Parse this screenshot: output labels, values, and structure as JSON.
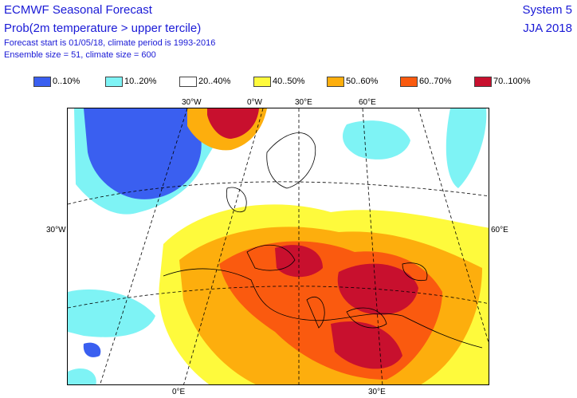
{
  "header": {
    "title": "ECMWF Seasonal Forecast",
    "subtitle": "Prob(2m temperature > upper tercile)",
    "line1": "Forecast start is 01/05/18, climate period is 1993-2016",
    "line2": "Ensemble size = 51, climate size = 600",
    "system": "System 5",
    "season": "JJA 2018"
  },
  "legend": [
    {
      "label": "0..10%",
      "color": "#3a5ff0"
    },
    {
      "label": "10..20%",
      "color": "#7ef3f5"
    },
    {
      "label": "20..40%",
      "color": "#ffffff"
    },
    {
      "label": "40..50%",
      "color": "#fefa3c"
    },
    {
      "label": "50..60%",
      "color": "#fdae0d"
    },
    {
      "label": "60..70%",
      "color": "#fa5a0f"
    },
    {
      "label": "70..100%",
      "color": "#c8102e"
    }
  ],
  "axes": {
    "top": [
      "30°W",
      "0°W",
      "30°E",
      "60°E"
    ],
    "left": "30°W",
    "right": "60°E",
    "bottom": [
      "0°E",
      "30°E"
    ]
  }
}
